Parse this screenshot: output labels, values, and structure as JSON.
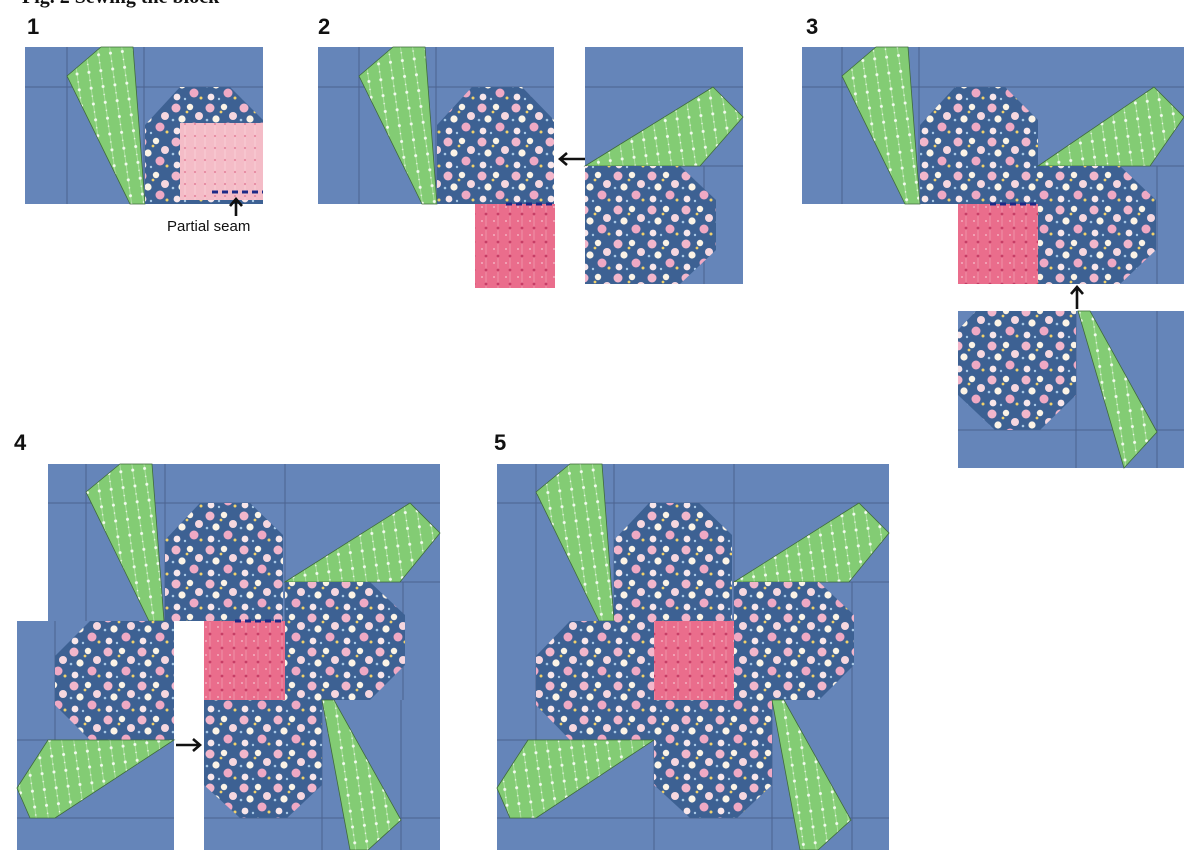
{
  "header_partial": "Fig. 2 Sewing the block",
  "steps": {
    "s1": "1",
    "s2": "2",
    "s3": "3",
    "s4": "4",
    "s5": "5"
  },
  "caption": "Partial seam",
  "colors": {
    "background_fabric": "#6585b9",
    "seam_line": "#4b6290",
    "leaf_fabric": "#83cc74",
    "floral_fabric": "#3d6193",
    "center_pink_light": "#f4bcc7",
    "center_pink_dark": "#ea6d8c",
    "partial_seam_dash": "#1d2a86",
    "arrow": "#111111"
  },
  "icons": {
    "arrow": "arrow-icon",
    "floral_print": "floral-print-pattern",
    "leaf_dots": "dotted-stripe-pattern"
  }
}
